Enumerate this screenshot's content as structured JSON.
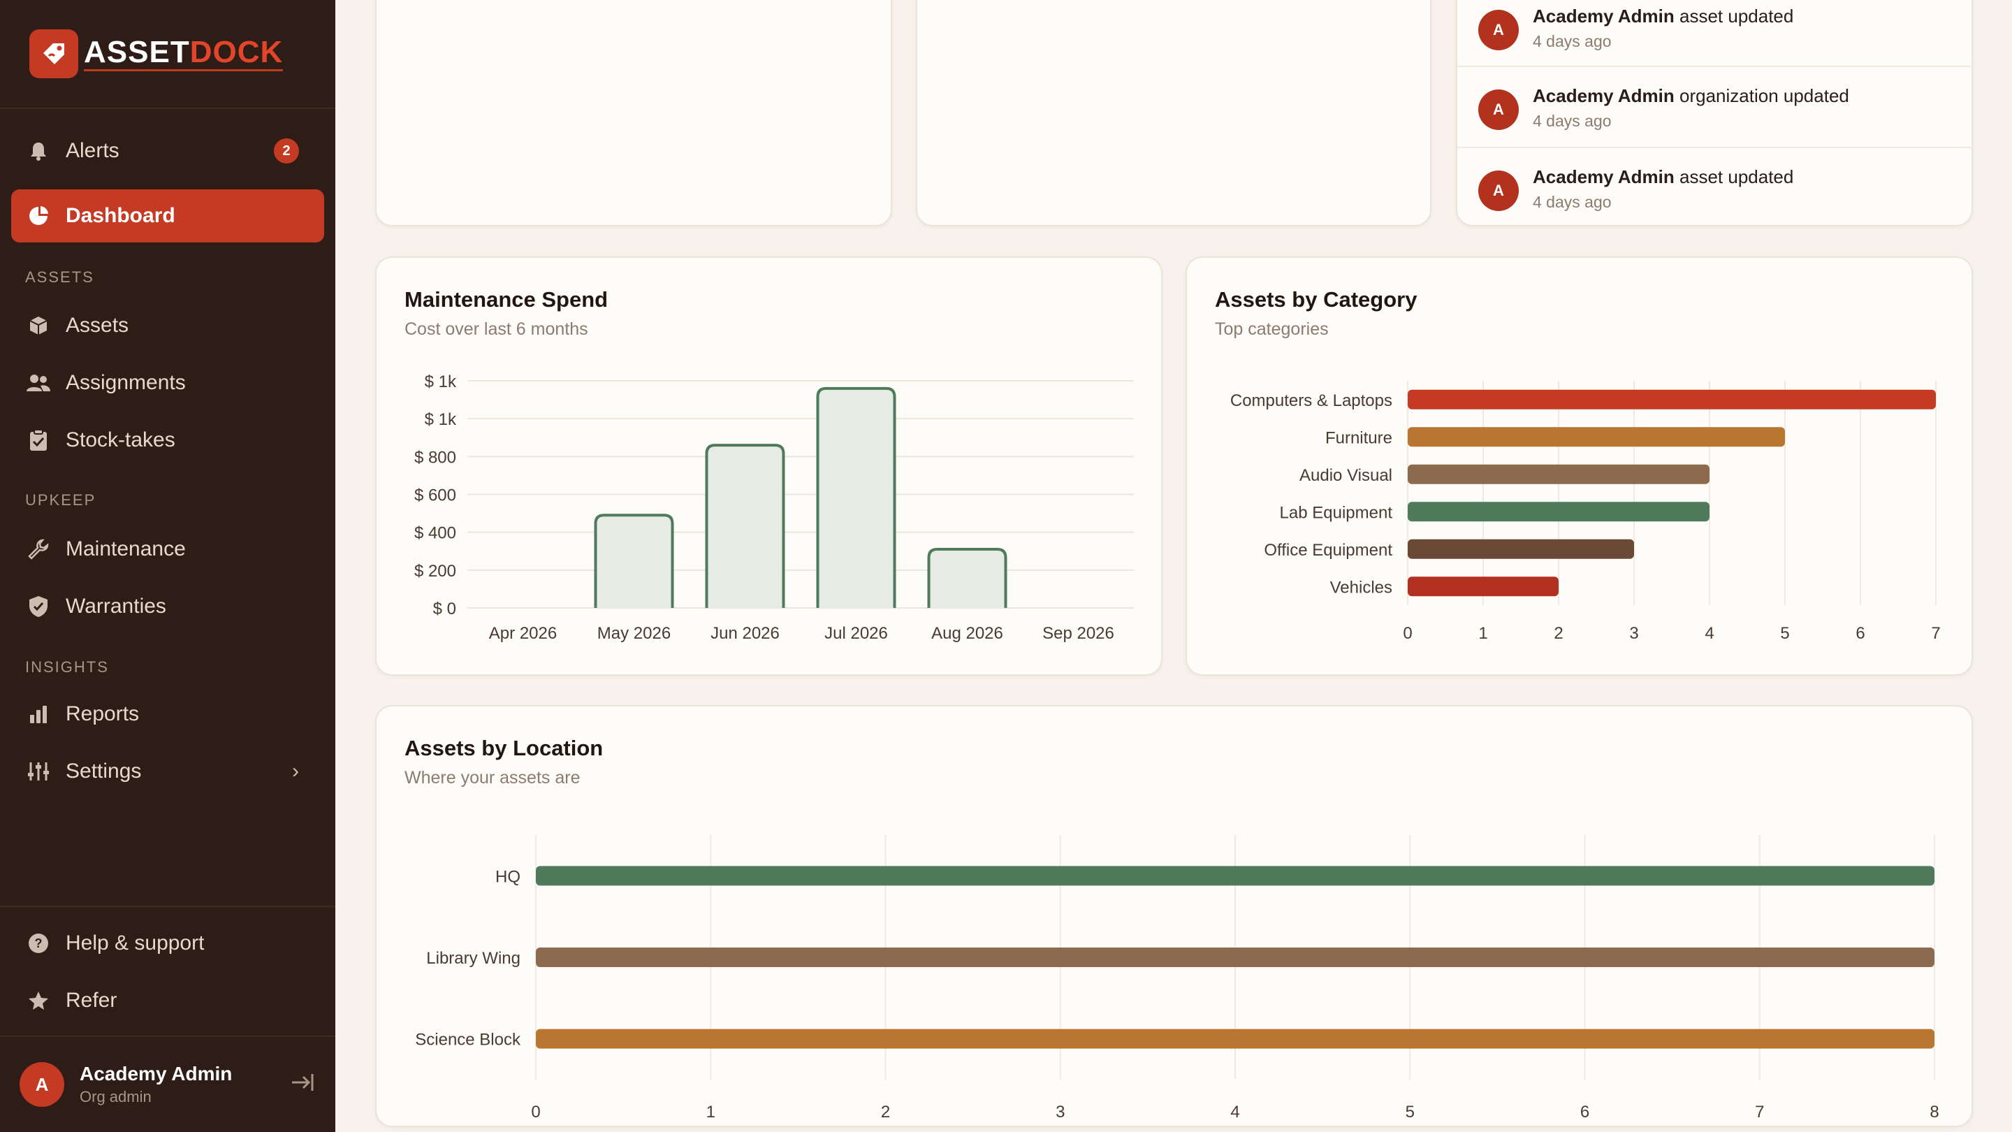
{
  "brand": {
    "name_part1": "ASSET",
    "name_part2": "DOCK"
  },
  "sidebar": {
    "alerts": {
      "label": "Alerts",
      "badge": "2"
    },
    "dashboard": {
      "label": "Dashboard"
    },
    "section_assets": "ASSETS",
    "assets": {
      "label": "Assets"
    },
    "assignments": {
      "label": "Assignments"
    },
    "stocktakes": {
      "label": "Stock-takes"
    },
    "section_upkeep": "UPKEEP",
    "maintenance": {
      "label": "Maintenance"
    },
    "warranties": {
      "label": "Warranties"
    },
    "section_insights": "INSIGHTS",
    "reports": {
      "label": "Reports"
    },
    "settings": {
      "label": "Settings"
    },
    "help": {
      "label": "Help & support"
    },
    "refer": {
      "label": "Refer"
    },
    "user": {
      "initial": "A",
      "name": "Academy Admin",
      "role": "Org admin"
    }
  },
  "activity": [
    {
      "initial": "A",
      "actor": "Academy Admin",
      "action": "asset updated",
      "time": "4 days ago"
    },
    {
      "initial": "A",
      "actor": "Academy Admin",
      "action": "organization updated",
      "time": "4 days ago"
    },
    {
      "initial": "A",
      "actor": "Academy Admin",
      "action": "asset updated",
      "time": "4 days ago"
    }
  ],
  "maintenance_card": {
    "title": "Maintenance Spend",
    "subtitle": "Cost over last 6 months"
  },
  "category_card": {
    "title": "Assets by Category",
    "subtitle": "Top categories"
  },
  "location_card": {
    "title": "Assets by Location",
    "subtitle": "Where your assets are"
  },
  "colors": {
    "accent": "#c53a23",
    "sidebar": "#2e1d16",
    "green": "#4f7b5c",
    "orange": "#b87630",
    "brown": "#8d6a4e",
    "darkbrown": "#6a4a36",
    "red": "#b33020"
  },
  "chart_data": [
    {
      "type": "bar",
      "title": "Maintenance Spend",
      "subtitle": "Cost over last 6 months",
      "categories": [
        "Apr 2026",
        "May 2026",
        "Jun 2026",
        "Jul 2026",
        "Aug 2026",
        "Sep 2026"
      ],
      "values": [
        0,
        490,
        860,
        1160,
        310,
        0
      ],
      "ylim": [
        0,
        1200
      ],
      "yticks": [
        0,
        200,
        400,
        600,
        800,
        1000,
        1200
      ],
      "ytick_labels": [
        "$ 0",
        "$ 200",
        "$ 400",
        "$ 600",
        "$ 800",
        "$ 1k",
        "$ 1k"
      ],
      "grid": true
    },
    {
      "type": "bar",
      "orientation": "horizontal",
      "title": "Assets by Category",
      "subtitle": "Top categories",
      "categories": [
        "Computers & Laptops",
        "Furniture",
        "Audio Visual",
        "Lab Equipment",
        "Office Equipment",
        "Vehicles"
      ],
      "values": [
        7,
        5,
        4,
        4,
        3,
        2
      ],
      "colors": [
        "#c53a23",
        "#b87630",
        "#8d6a4e",
        "#4f7b5c",
        "#6a4a36",
        "#b33020"
      ],
      "xlim": [
        0,
        7
      ],
      "xticks": [
        0,
        1,
        2,
        3,
        4,
        5,
        6,
        7
      ],
      "grid": true
    },
    {
      "type": "bar",
      "orientation": "horizontal",
      "title": "Assets by Location",
      "subtitle": "Where your assets are",
      "categories": [
        "HQ",
        "Library Wing",
        "Science Block"
      ],
      "values": [
        8,
        8,
        8
      ],
      "colors": [
        "#4f7b5c",
        "#8d6a4e",
        "#b87630"
      ],
      "xlim": [
        0,
        8
      ],
      "xticks": [
        0,
        1,
        2,
        3,
        4,
        5,
        6,
        7,
        8
      ],
      "grid": true
    }
  ]
}
